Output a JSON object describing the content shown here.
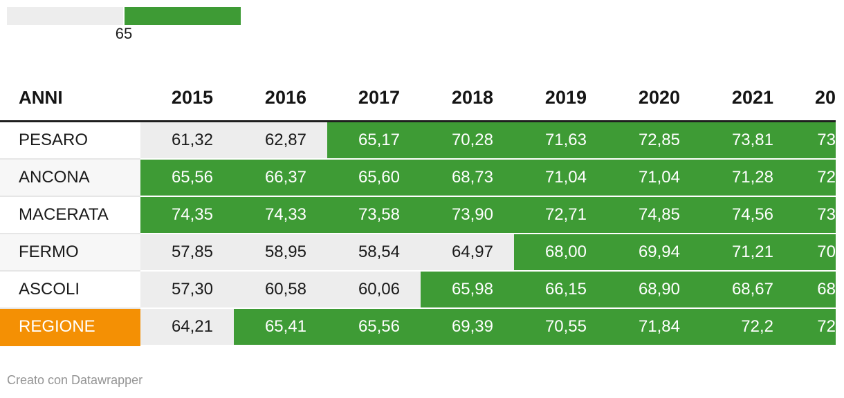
{
  "chart_data": {
    "type": "table",
    "title": "",
    "legend": {
      "threshold_label": "65",
      "position": "top-left"
    },
    "threshold": "65",
    "columns": [
      "ANNI",
      "2015",
      "2016",
      "2017",
      "2018",
      "2019",
      "2020",
      "2021",
      "20"
    ],
    "rows": [
      {
        "label": "PESARO",
        "values": [
          "61,32",
          "62,87",
          "65,17",
          "70,28",
          "71,63",
          "72,85",
          "73,81",
          "73"
        ],
        "highlight": false
      },
      {
        "label": "ANCONA",
        "values": [
          "65,56",
          "66,37",
          "65,60",
          "68,73",
          "71,04",
          "71,04",
          "71,28",
          "72"
        ],
        "highlight": false
      },
      {
        "label": "MACERATA",
        "values": [
          "74,35",
          "74,33",
          "73,58",
          "73,90",
          "72,71",
          "74,85",
          "74,56",
          "73"
        ],
        "highlight": false
      },
      {
        "label": "FERMO",
        "values": [
          "57,85",
          "58,95",
          "58,54",
          "64,97",
          "68,00",
          "69,94",
          "71,21",
          "70"
        ],
        "highlight": false
      },
      {
        "label": "ASCOLI",
        "values": [
          "57,30",
          "60,58",
          "60,06",
          "65,98",
          "66,15",
          "68,90",
          "68,67",
          "68"
        ],
        "highlight": false
      },
      {
        "label": "REGIONE",
        "values": [
          "64,21",
          "65,41",
          "65,56",
          "69,39",
          "70,55",
          "71,84",
          "72,2",
          "72"
        ],
        "highlight": true
      }
    ]
  },
  "colors": {
    "above_threshold": "#3E9B35",
    "below_threshold": "#EDEDED",
    "highlight_row_label": "#F49004",
    "header_rule": "#1F1F1F",
    "text_dark": "#1a1a1a",
    "text_on_color": "#ffffff",
    "footer_text": "#949494"
  },
  "footer": {
    "credit": "Creato con Datawrapper"
  }
}
